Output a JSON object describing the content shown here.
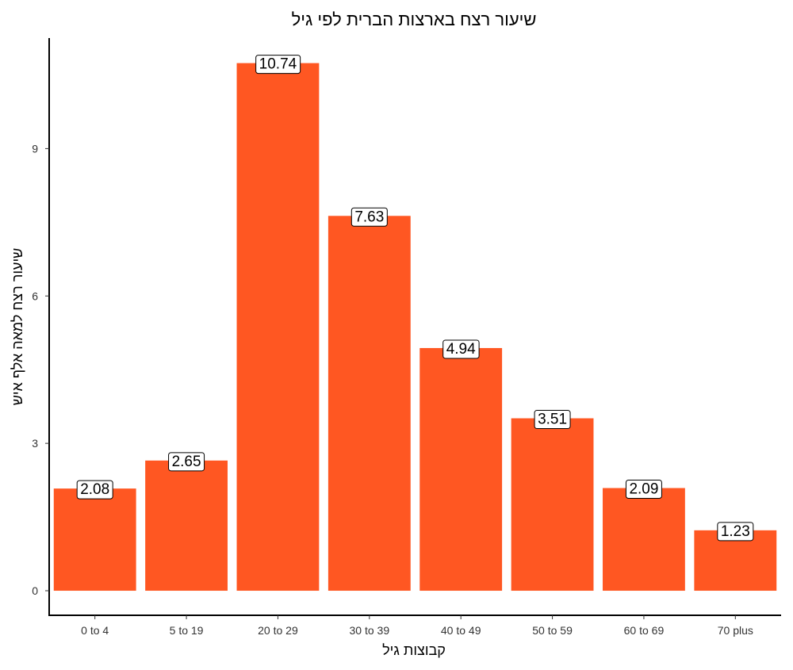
{
  "chart_data": {
    "type": "bar",
    "title": "שיעור רצח בארצות הברית לפי גיל",
    "xlabel": "קבוצות גיל",
    "ylabel": "שיעור רצח למאה אלף איש",
    "categories": [
      "0 to 4",
      "5 to 19",
      "20 to 29",
      "30 to 39",
      "40 to 49",
      "50 to 59",
      "60 to 69",
      "70 plus"
    ],
    "values": [
      2.08,
      2.65,
      10.74,
      7.63,
      4.94,
      3.51,
      2.09,
      1.23
    ],
    "value_labels": [
      "2.08",
      "2.65",
      "10.74",
      "7.63",
      "4.94",
      "3.51",
      "2.09",
      "1.23"
    ],
    "yticks": [
      0,
      3,
      6,
      9
    ],
    "ytick_labels": [
      "0",
      "3",
      "6",
      "9"
    ],
    "ylim": [
      -0.5,
      11.25
    ],
    "grid": false,
    "legend": "none",
    "bar_color": "#FF5722"
  }
}
